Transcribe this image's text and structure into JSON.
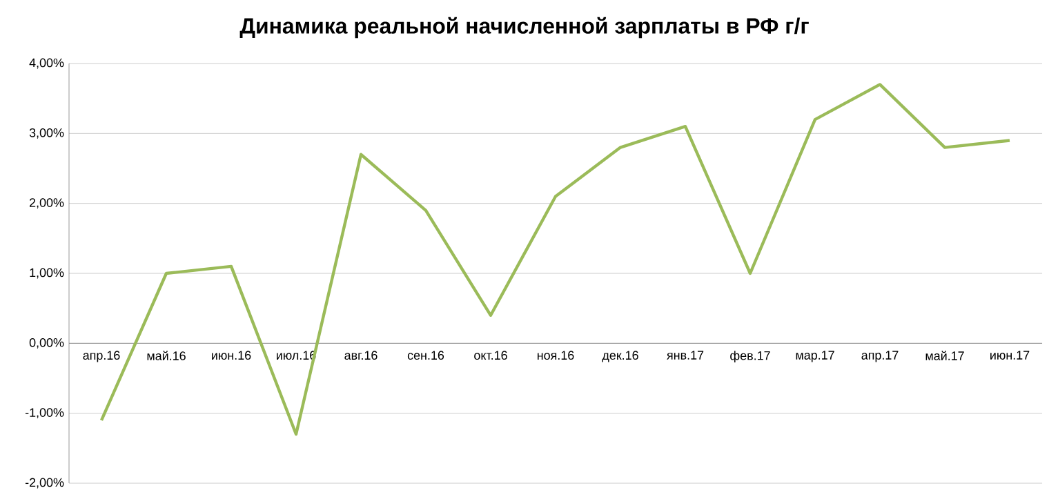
{
  "chart_data": {
    "type": "line",
    "title": "Динамика реальной начисленной зарплаты в РФ г/г",
    "categories": [
      "апр.16",
      "май.16",
      "июн.16",
      "июл.16",
      "авг.16",
      "сен.16",
      "окт.16",
      "ноя.16",
      "дек.16",
      "янв.17",
      "фев.17",
      "мар.17",
      "апр.17",
      "май.17",
      "июн.17"
    ],
    "values": [
      -1.1,
      1.0,
      1.1,
      -1.3,
      2.7,
      1.9,
      0.4,
      2.1,
      2.8,
      3.1,
      1.0,
      3.2,
      3.7,
      2.8,
      2.9
    ],
    "color": "#9bbb59",
    "line_style": "solid",
    "grid": "y",
    "ylim": [
      -2,
      4
    ],
    "yticks": [
      {
        "value": -2,
        "label": "-2,00%"
      },
      {
        "value": -1,
        "label": "-1,00%"
      },
      {
        "value": 0,
        "label": "0,00%"
      },
      {
        "value": 1,
        "label": "1,00%"
      },
      {
        "value": 2,
        "label": "2,00%"
      },
      {
        "value": 3,
        "label": "3,00%"
      },
      {
        "value": 4,
        "label": "4,00%"
      }
    ]
  }
}
